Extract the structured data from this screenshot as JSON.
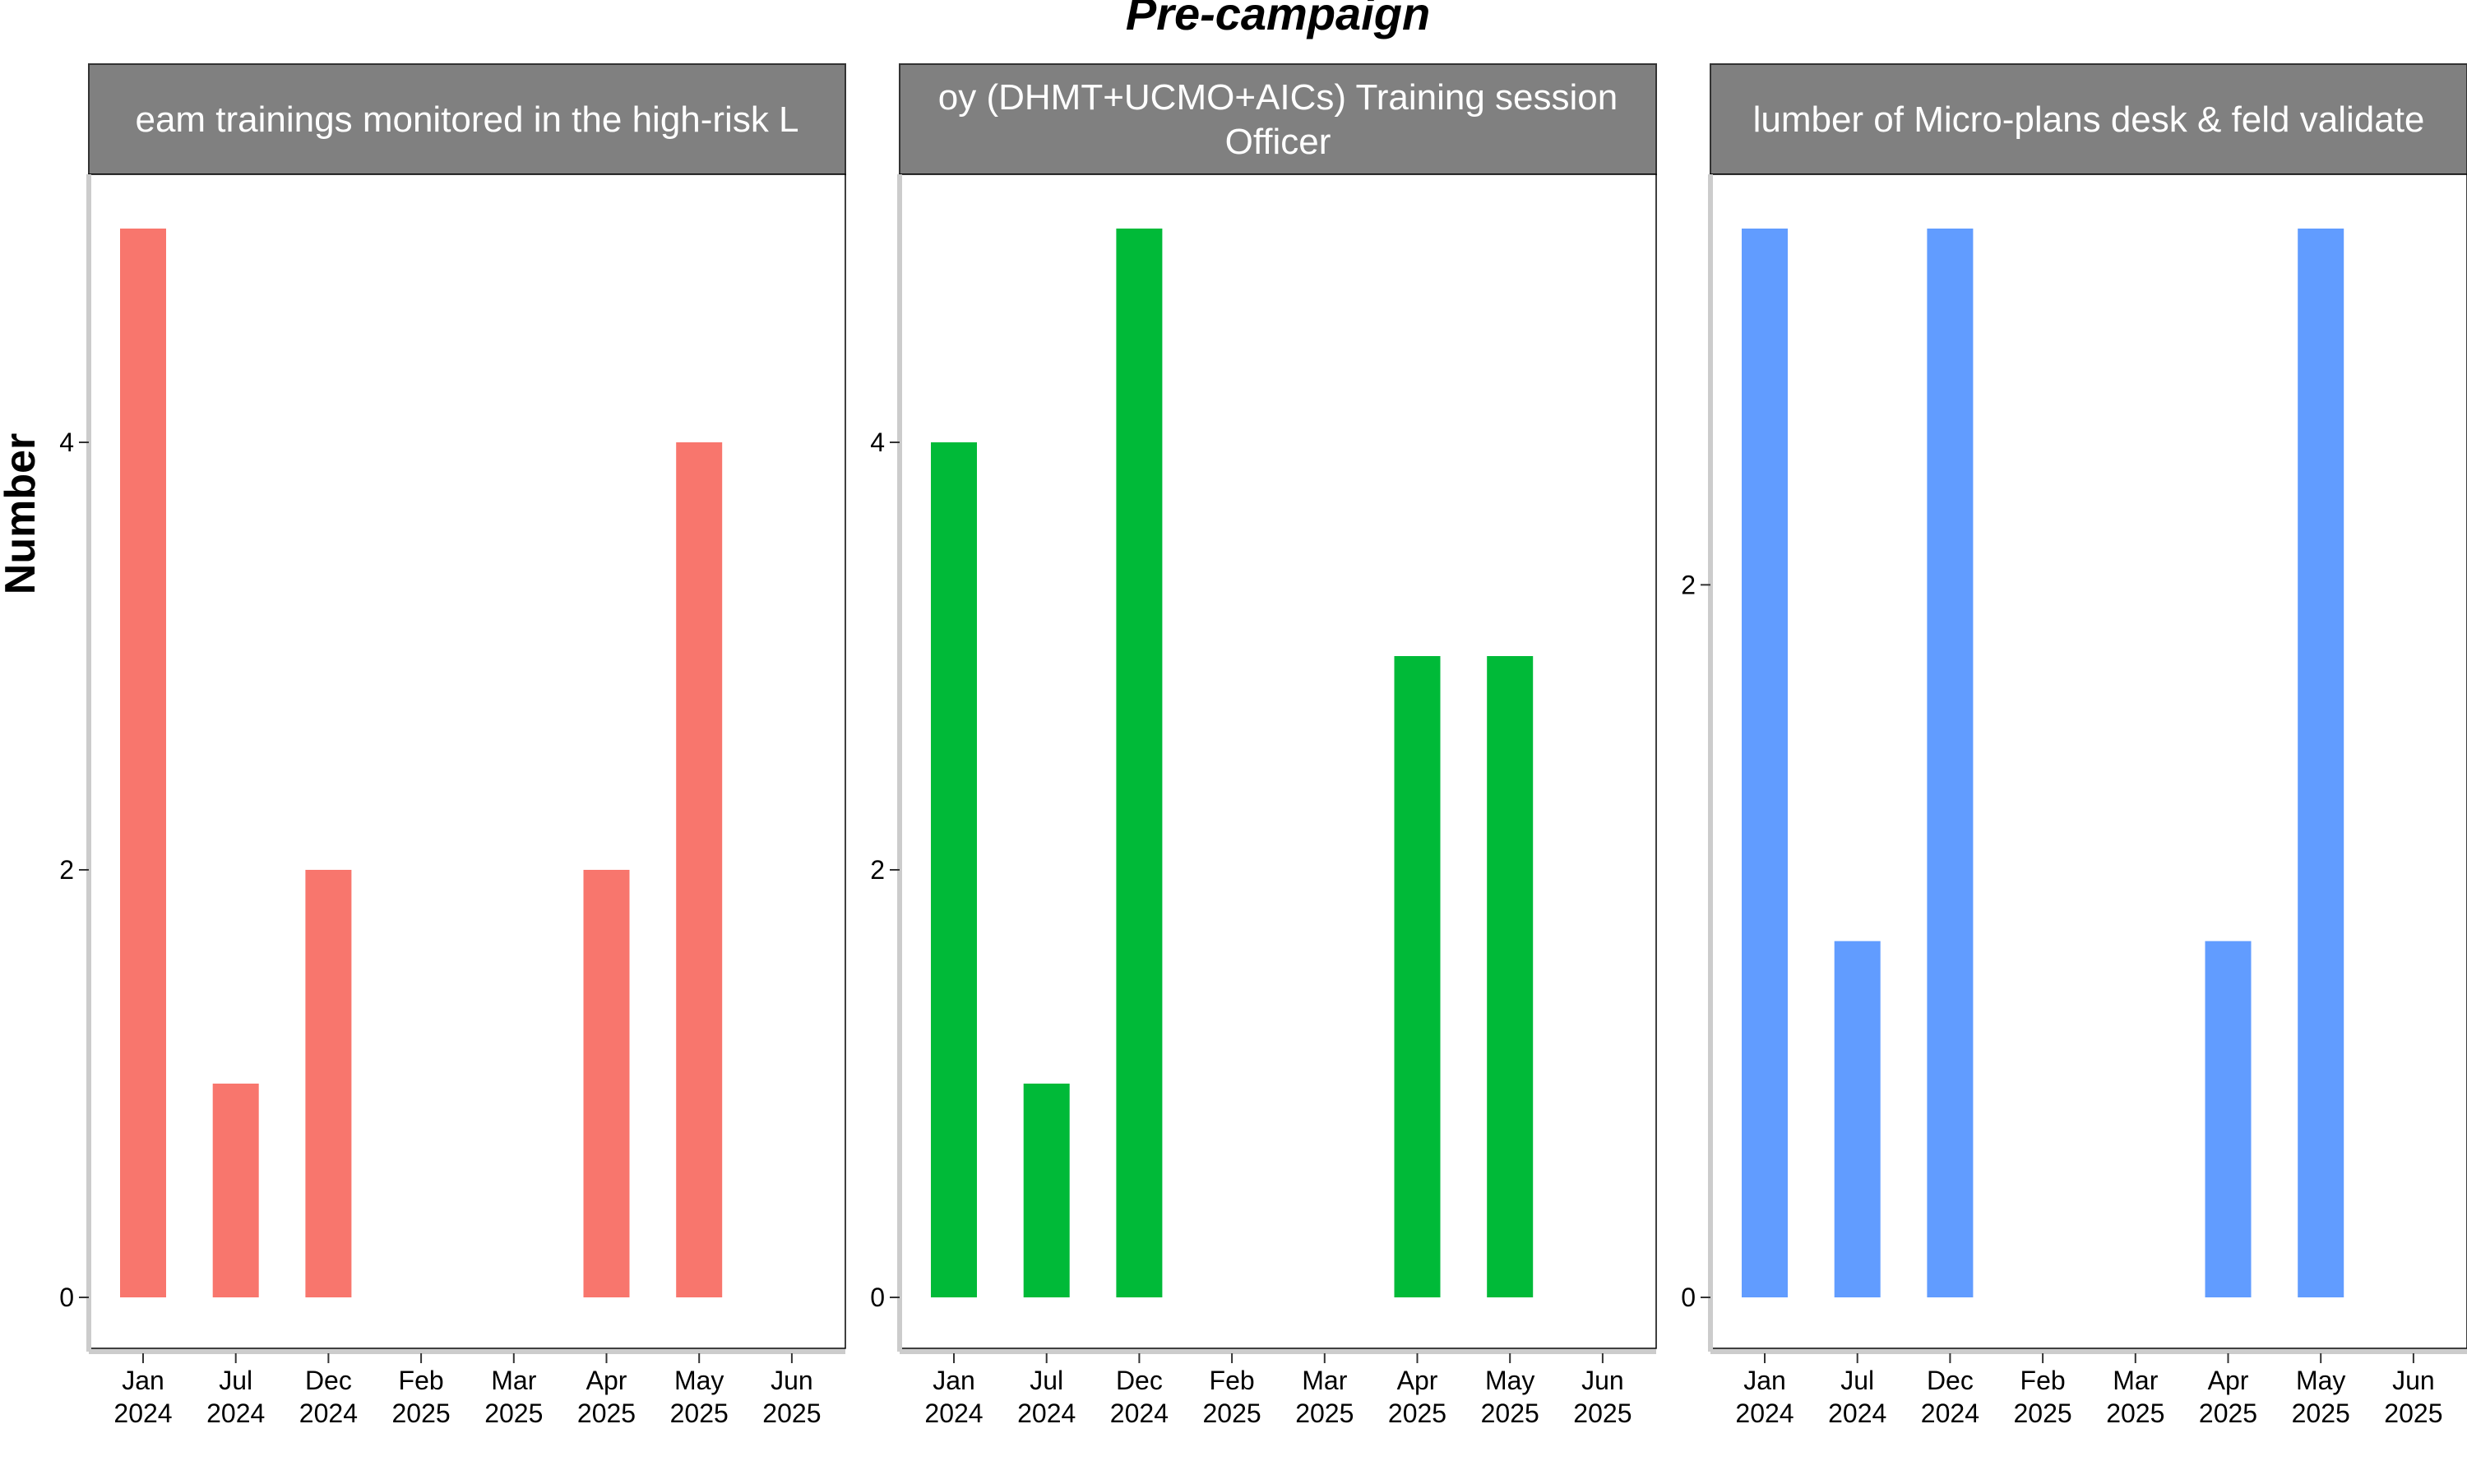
{
  "chart_data": {
    "type": "bar",
    "title": "Pre-campaign",
    "ylabel": "Number",
    "xlabel": "",
    "grid": false,
    "legend": "none",
    "x_ticks": [
      [
        "Jan",
        "2024"
      ],
      [
        "Jul",
        "2024"
      ],
      [
        "Dec",
        "2024"
      ],
      [
        "Feb",
        "2025"
      ],
      [
        "Mar",
        "2025"
      ],
      [
        "Apr",
        "2025"
      ],
      [
        "May",
        "2025"
      ],
      [
        "Jun",
        "2025"
      ]
    ],
    "panels": [
      {
        "strip": [
          "eam trainings monitored in the high-risk L"
        ],
        "color": "#F8766D",
        "ylim": [
          0,
          5
        ],
        "yticks": [
          0,
          2,
          4
        ],
        "values": [
          5,
          1,
          2,
          null,
          null,
          2,
          4,
          null
        ]
      },
      {
        "strip": [
          "oy (DHMT+UCMO+AICs) Training session",
          "Officer"
        ],
        "color": "#00BA38",
        "ylim": [
          0,
          5
        ],
        "yticks": [
          0,
          2,
          4
        ],
        "values": [
          4,
          1,
          5,
          null,
          null,
          3,
          3,
          null
        ]
      },
      {
        "strip": [
          "lumber of Micro-plans desk & feld validate"
        ],
        "color": "#619CFF",
        "ylim": [
          0,
          3
        ],
        "yticks": [
          0,
          2
        ],
        "values": [
          3,
          1,
          3,
          null,
          null,
          1,
          3,
          null
        ]
      }
    ]
  }
}
